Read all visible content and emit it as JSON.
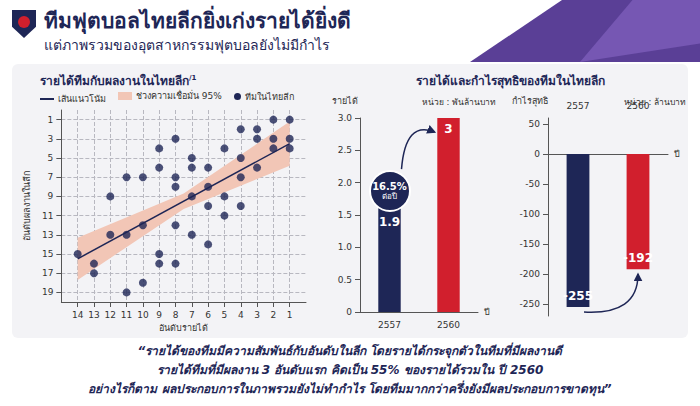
{
  "header": {
    "title": "ทีมฟุตบอลไทยลีกยิ่งเก่งรายได้ยิ่งดี",
    "subtitle": "แต่ภาพรวมของอุตสาหกรรมฟุตบอลยังไม่มีกำไร"
  },
  "section_title": "รายได้และกำไรสุทธิของทีมในไทยลีก",
  "chart_data": [
    {
      "type": "scatter",
      "title": "รายได้ทีมกับผลงานในไทยลีก",
      "title_note": "/1",
      "xlabel": "อันดับรายได้",
      "ylabel": "อันดับผลงานในลีก",
      "xlim": [
        15,
        0
      ],
      "xticks": [
        14,
        13,
        12,
        11,
        10,
        9,
        8,
        7,
        6,
        5,
        4,
        3,
        2,
        1
      ],
      "ylim": [
        20,
        0
      ],
      "yticks": [
        1,
        3,
        5,
        7,
        9,
        11,
        13,
        15,
        17,
        19
      ],
      "grid": true,
      "legend": "top",
      "series": [
        {
          "name": "เส้นแนวโน้ม",
          "type": "line",
          "color": "#1e2656",
          "x": [
            14,
            1
          ],
          "values": [
            15.5,
            3.5
          ]
        },
        {
          "name": "ช่วงความเชื่อมั่น 95%",
          "type": "band",
          "color": "#f2c6b6",
          "x": [
            14,
            7.5,
            1
          ],
          "lower": [
            13.3,
            8.7,
            1.2
          ],
          "upper": [
            17.7,
            10.3,
            5.8
          ]
        },
        {
          "name": "ทีมในไทยลีก",
          "type": "scatter",
          "color": "#1e2656",
          "marker": "circle",
          "x": [
            14,
            13,
            13,
            12,
            12,
            11,
            11,
            11,
            10,
            10,
            10,
            9,
            9,
            9,
            9,
            8,
            8,
            8,
            8,
            8,
            7,
            7,
            7,
            7,
            6,
            6,
            6,
            6,
            5,
            5,
            5,
            4,
            4,
            4,
            4,
            3,
            3,
            3,
            2,
            2,
            2,
            1,
            1,
            1
          ],
          "values": [
            15,
            16,
            17,
            9,
            13,
            7,
            13,
            19,
            7,
            12,
            18,
            4,
            6,
            15,
            16,
            3,
            7,
            8,
            12,
            16,
            5,
            6,
            9,
            13,
            6,
            8,
            10,
            14,
            4,
            9,
            11,
            2,
            5,
            7,
            10,
            2,
            3,
            6,
            1,
            3,
            4,
            1,
            3,
            4
          ]
        }
      ]
    },
    {
      "type": "bar",
      "ylabel": "รายได้",
      "unit": "หน่วย : พันล้านบาท",
      "xlabel": "ปี",
      "categories": [
        "2557",
        "2560"
      ],
      "values": [
        1.9,
        3
      ],
      "colors": [
        "#1e2656",
        "#d11f2d"
      ],
      "ylim": [
        0,
        3
      ],
      "yticks": [
        0,
        0.5,
        {
          "value": 1,
          "label": "1.0"
        },
        1.5,
        {
          "value": 2,
          "label": "2.0"
        },
        2.5,
        {
          "value": 3,
          "label": "3.0"
        }
      ],
      "grid": false,
      "data_labels": true,
      "annotation": {
        "text": "16.5%",
        "subtext": "ต่อปี"
      }
    },
    {
      "type": "bar",
      "ylabel": "กำไรสุทธิ",
      "unit": "หน่วย : ล้านบาท",
      "xlabel": "ปี",
      "categories": [
        "2557",
        "2560"
      ],
      "values": [
        -255,
        -192
      ],
      "colors": [
        "#1e2656",
        "#d11f2d"
      ],
      "ylim": [
        -270,
        60
      ],
      "yticks": [
        50,
        0,
        -50,
        -100,
        -150,
        -200,
        -250
      ],
      "grid": false,
      "data_labels": true
    }
  ],
  "quote": [
    "“รายได้ของทีมมีความสัมพันธ์กับอันดับในลีก โดยรายได้กระจุกตัวในทีมที่มีผลงานดี",
    "รายได้ทีมที่มีผลงาน 3 อันดับแรก คิดเป็น 55% ของรายได้รวมใน ปี 2560",
    "อย่างไรก็ตาม ผลประกอบการในภาพรวมยังไม่ทำกำไร โดยทีมมากกว่าครึ่งยังมีผลประกอบการขาดทุน”"
  ]
}
